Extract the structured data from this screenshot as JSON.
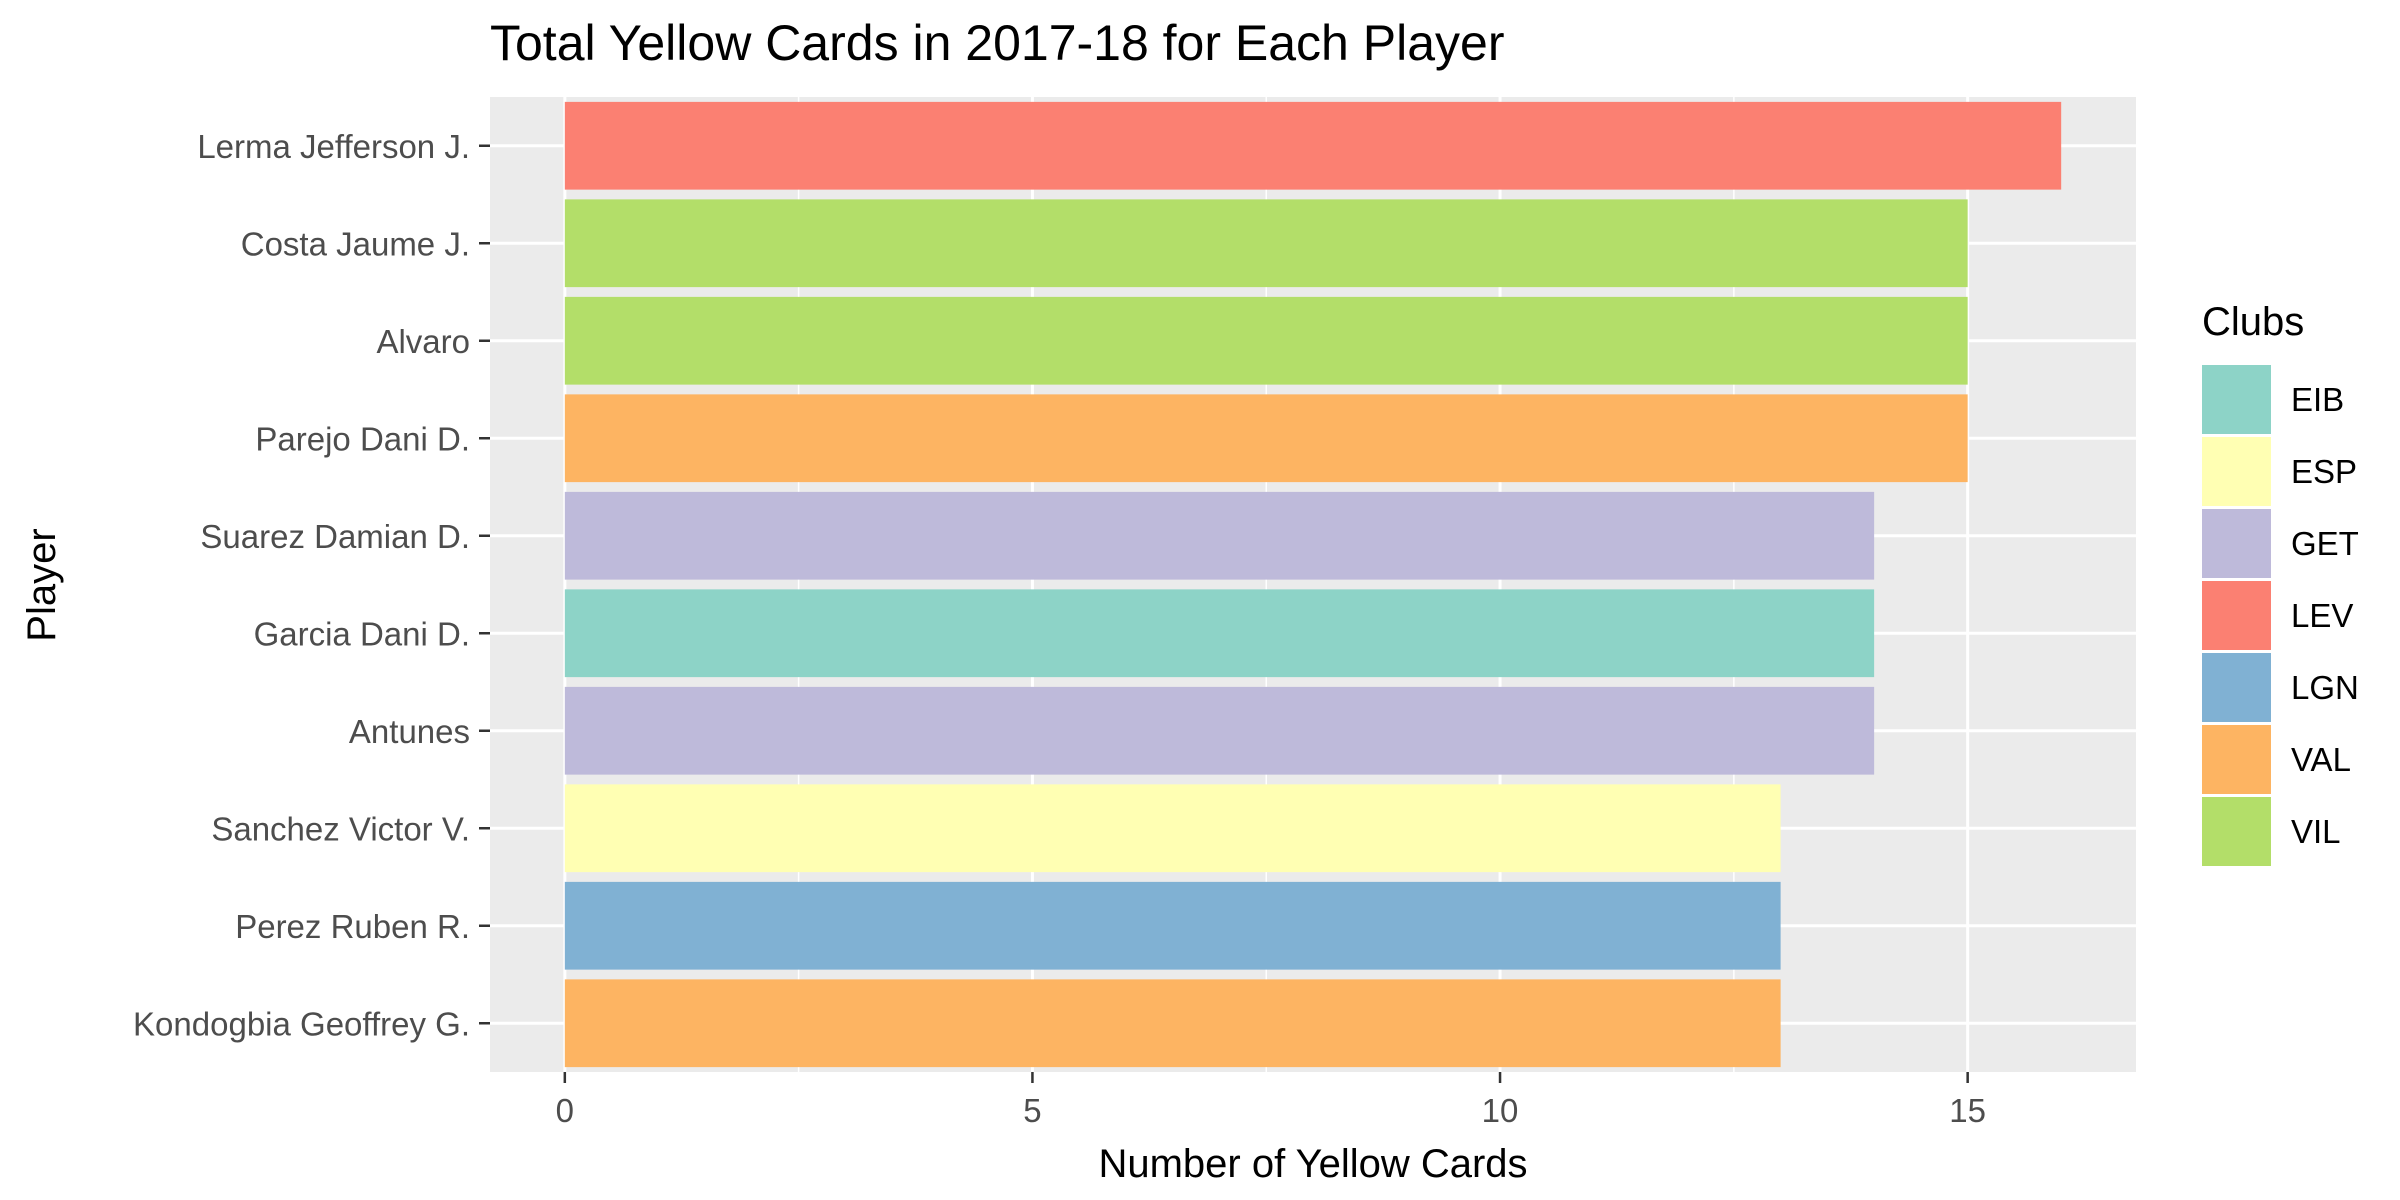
{
  "chart_data": {
    "type": "bar",
    "orientation": "horizontal",
    "title": "Total Yellow Cards in 2017-18 for Each Player",
    "xlabel": "Number of Yellow Cards",
    "ylabel": "Player",
    "xlim": [
      -0.8,
      16.8
    ],
    "xticks": [
      0,
      5,
      10,
      15
    ],
    "grid": true,
    "legend_position": "right",
    "legend_title": "Clubs",
    "clubs": [
      {
        "name": "EIB",
        "color": "#8DD3C7"
      },
      {
        "name": "ESP",
        "color": "#FFFFB3"
      },
      {
        "name": "GET",
        "color": "#BEBADA"
      },
      {
        "name": "LEV",
        "color": "#FB8072"
      },
      {
        "name": "LGN",
        "color": "#80B1D3"
      },
      {
        "name": "VAL",
        "color": "#FDB462"
      },
      {
        "name": "VIL",
        "color": "#B3DE69"
      }
    ],
    "bars": [
      {
        "player": "Lerma Jefferson  J.",
        "value": 16,
        "club": "LEV"
      },
      {
        "player": "Costa Jaume  J.",
        "value": 15,
        "club": "VIL"
      },
      {
        "player": "Alvaro ",
        "value": 15,
        "club": "VIL"
      },
      {
        "player": "Parejo Dani D.",
        "value": 15,
        "club": "VAL"
      },
      {
        "player": "Suarez Damian  D.",
        "value": 14,
        "club": "GET"
      },
      {
        "player": "Garcia Dani  D.",
        "value": 14,
        "club": "EIB"
      },
      {
        "player": "Antunes ",
        "value": 14,
        "club": "GET"
      },
      {
        "player": "Sanchez Victor  V.",
        "value": 13,
        "club": "ESP"
      },
      {
        "player": "Perez Ruben  R.",
        "value": 13,
        "club": "LGN"
      },
      {
        "player": "Kondogbia Geoffrey  G.",
        "value": 13,
        "club": "VAL"
      }
    ]
  }
}
